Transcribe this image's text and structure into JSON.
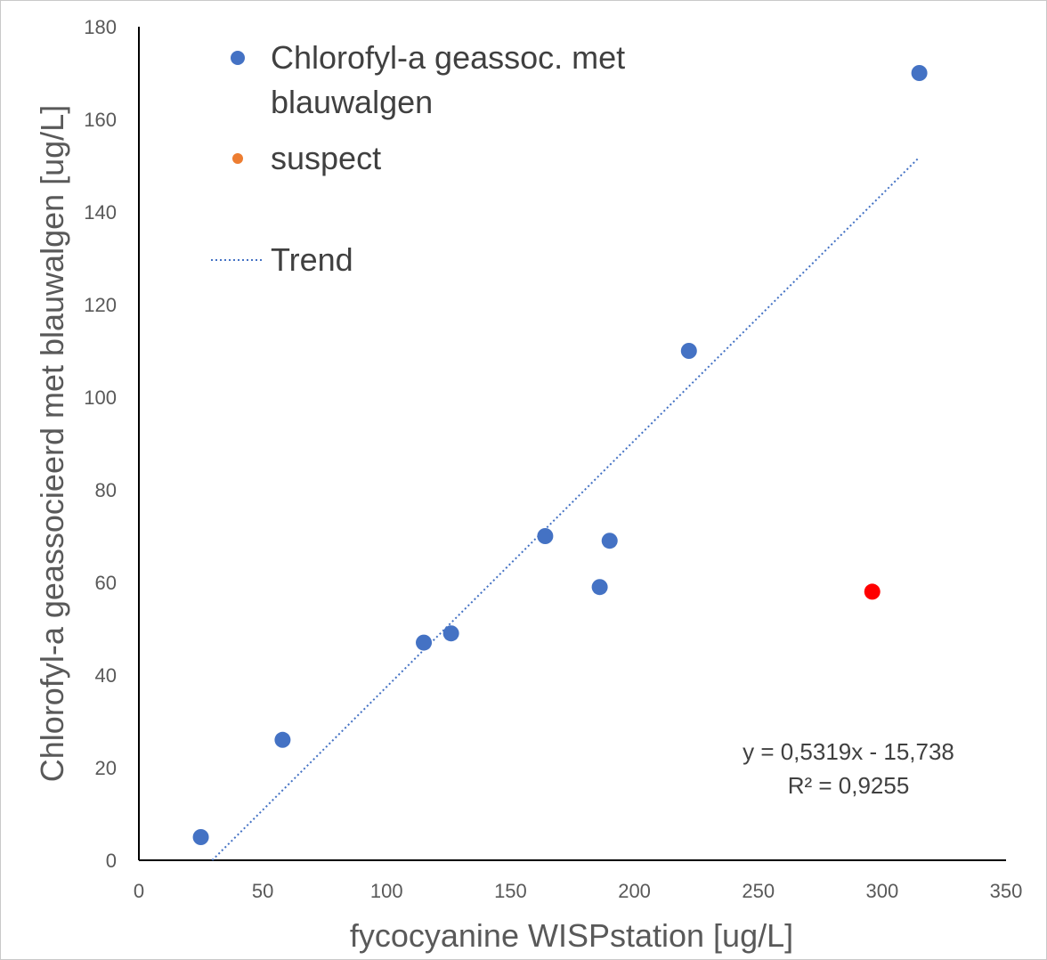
{
  "chart_data": {
    "type": "scatter",
    "xlabel": "fycocyanine WISPstation [ug/L]",
    "ylabel": "Chlorofyl-a geassocieerd met blauwalgen [ug/L]",
    "xlim": [
      0,
      350
    ],
    "ylim": [
      0,
      180
    ],
    "xticks": [
      "0",
      "50",
      "100",
      "150",
      "200",
      "250",
      "300",
      "350"
    ],
    "yticks": [
      "0",
      "20",
      "40",
      "60",
      "80",
      "100",
      "120",
      "140",
      "160",
      "180"
    ],
    "grid": false,
    "legend_position": "top-left",
    "series": [
      {
        "name_lines": [
          "Chlorofyl-a geassoc. met",
          "blauwalgen"
        ],
        "color": "#4472c4",
        "marker": "circle",
        "points": [
          {
            "x": 25,
            "y": 5
          },
          {
            "x": 58,
            "y": 26
          },
          {
            "x": 115,
            "y": 47
          },
          {
            "x": 126,
            "y": 49
          },
          {
            "x": 164,
            "y": 70
          },
          {
            "x": 186,
            "y": 59
          },
          {
            "x": 190,
            "y": 69
          },
          {
            "x": 222,
            "y": 110
          },
          {
            "x": 315,
            "y": 170
          }
        ]
      },
      {
        "name": "suspect",
        "legend_color": "#ed7d31",
        "color": "#ff0000",
        "marker": "circle",
        "points": [
          {
            "x": 296,
            "y": 58
          }
        ]
      }
    ],
    "trendline": {
      "name": "Trend",
      "color": "#4472c4",
      "style": "dotted",
      "slope": 0.5319,
      "intercept": -15.738,
      "x_range": [
        29.6,
        315
      ],
      "equation": "y = 0,5319x - 15,738",
      "r_squared": "R² = 0,9255"
    }
  }
}
